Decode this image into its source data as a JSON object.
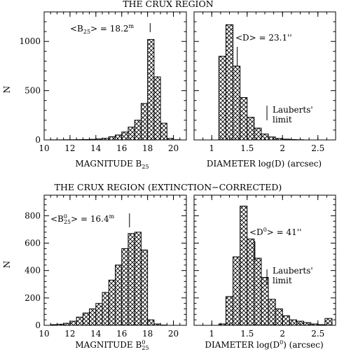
{
  "top_title": "THE CRUX REGION",
  "bottom_title": "THE CRUX REGION (EXTINCTION−CORRECTED)",
  "chart_data": [
    {
      "type": "bar",
      "xlabel": "MAGNITUDE B25",
      "ylabel": "N",
      "xlim": [
        10,
        21
      ],
      "ylim": [
        0,
        1300
      ],
      "xticks": [
        10,
        12,
        14,
        16,
        18,
        20
      ],
      "yticks": [
        0,
        500,
        1000
      ],
      "bin_width": 0.5,
      "bin_starts": [
        10.5,
        11,
        11.5,
        12,
        12.5,
        13,
        13.5,
        14,
        14.5,
        15,
        15.5,
        16,
        16.5,
        17,
        17.5,
        18,
        18.5,
        19,
        19.5,
        20
      ],
      "values": [
        1,
        1,
        2,
        2,
        3,
        4,
        6,
        10,
        16,
        32,
        50,
        80,
        130,
        200,
        370,
        1020,
        640,
        170,
        15,
        2
      ],
      "annotation": {
        "text": "<B25> = 18.2m",
        "x": 18.2
      },
      "grid": false
    },
    {
      "type": "bar",
      "xlabel": "DIAMETER log(D) (arcsec)",
      "ylabel": "",
      "xlim": [
        0.75,
        2.75
      ],
      "ylim": [
        0,
        1300
      ],
      "xticks": [
        1,
        1.5,
        2,
        2.5
      ],
      "yticks": [
        0,
        500,
        1000
      ],
      "bin_width": 0.1,
      "bin_starts": [
        1.1,
        1.2,
        1.3,
        1.4,
        1.5,
        1.6,
        1.7,
        1.8,
        1.9,
        2.0,
        2.1,
        2.2
      ],
      "values": [
        850,
        1170,
        750,
        430,
        230,
        120,
        60,
        30,
        15,
        8,
        4,
        2
      ],
      "annotations": [
        {
          "text": "<D> = 23.1''",
          "x": 1.36
        },
        {
          "text": "Lauberts'",
          "x": 1.78
        },
        {
          "text": "limit",
          "x": 1.78
        }
      ],
      "grid": false
    },
    {
      "type": "bar",
      "xlabel": "MAGNITUDE B025",
      "ylabel": "N",
      "xlim": [
        10,
        21
      ],
      "ylim": [
        0,
        950
      ],
      "xticks": [
        10,
        12,
        14,
        16,
        18,
        20
      ],
      "yticks": [
        0,
        200,
        400,
        600,
        800
      ],
      "bin_width": 0.5,
      "bin_starts": [
        10.5,
        11,
        11.5,
        12,
        12.5,
        13,
        13.5,
        14,
        14.5,
        15,
        15.5,
        16,
        16.5,
        17,
        17.5,
        18,
        18.5,
        19
      ],
      "values": [
        5,
        8,
        15,
        30,
        60,
        90,
        120,
        160,
        240,
        330,
        440,
        560,
        670,
        680,
        550,
        40,
        10,
        2
      ],
      "annotation": {
        "text": "<B025> = 16.4m",
        "x": 16.6
      },
      "grid": false
    },
    {
      "type": "bar",
      "xlabel": "DIAMETER log(D0) (arcsec)",
      "ylabel": "",
      "xlim": [
        0.75,
        2.75
      ],
      "ylim": [
        0,
        950
      ],
      "xticks": [
        1,
        1.5,
        2,
        2.5
      ],
      "yticks": [
        0,
        200,
        400,
        600,
        800
      ],
      "bin_width": 0.1,
      "bin_starts": [
        1.1,
        1.2,
        1.3,
        1.4,
        1.5,
        1.6,
        1.7,
        1.8,
        1.9,
        2.0,
        2.1,
        2.2,
        2.3,
        2.4,
        2.5,
        2.6
      ],
      "values": [
        10,
        210,
        500,
        870,
        630,
        490,
        350,
        190,
        120,
        70,
        40,
        30,
        20,
        10,
        5,
        50
      ],
      "annotations": [
        {
          "text": "<D0> = 41''",
          "x": 1.61
        },
        {
          "text": "Lauberts'",
          "x": 1.78
        },
        {
          "text": "limit",
          "x": 1.78
        }
      ],
      "grid": false
    }
  ]
}
